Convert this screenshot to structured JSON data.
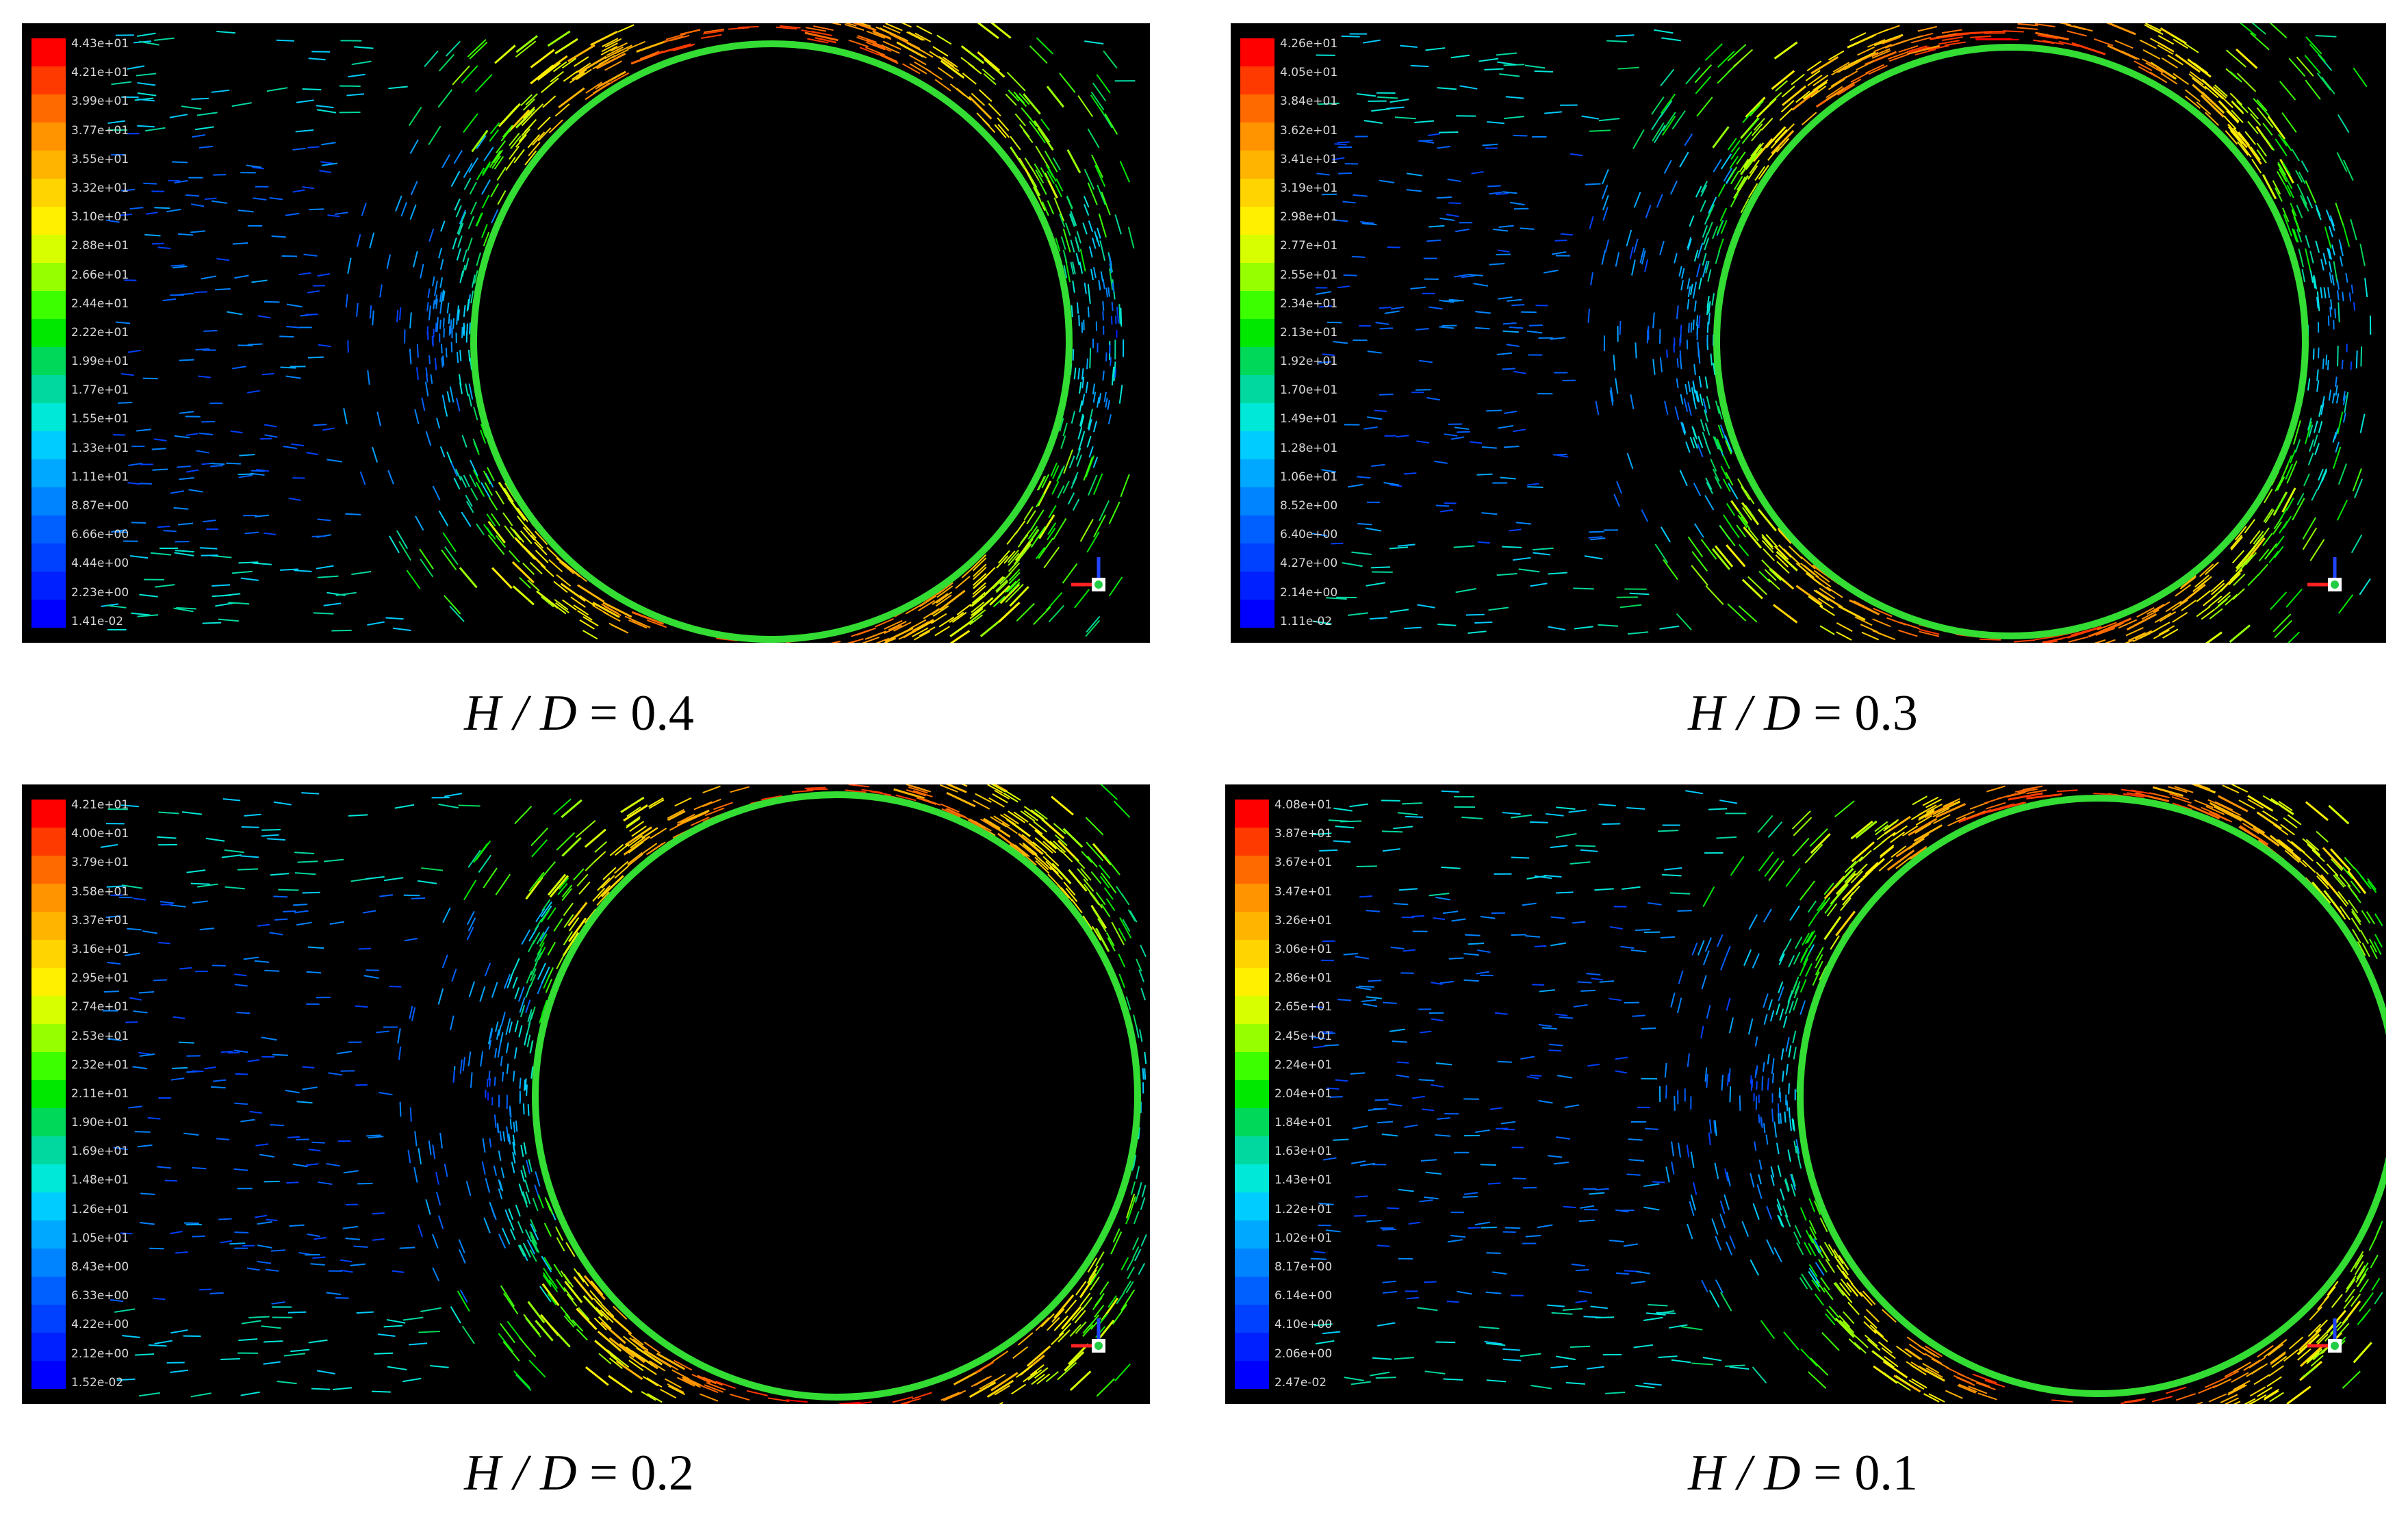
{
  "panels": [
    {
      "caption_var": "H / D",
      "caption_value": "= 0.4",
      "colorbar": [
        "4.43e+01",
        "4.21e+01",
        "3.99e+01",
        "3.77e+01",
        "3.55e+01",
        "3.32e+01",
        "3.10e+01",
        "2.88e+01",
        "2.66e+01",
        "2.44e+01",
        "2.22e+01",
        "1.99e+01",
        "1.77e+01",
        "1.55e+01",
        "1.33e+01",
        "1.11e+01",
        "8.87e+00",
        "6.66e+00",
        "4.44e+00",
        "2.23e+00",
        "1.41e-02"
      ]
    },
    {
      "caption_var": "H / D",
      "caption_value": "= 0.3",
      "colorbar": [
        "4.26e+01",
        "4.05e+01",
        "3.84e+01",
        "3.62e+01",
        "3.41e+01",
        "3.19e+01",
        "2.98e+01",
        "2.77e+01",
        "2.55e+01",
        "2.34e+01",
        "2.13e+01",
        "1.92e+01",
        "1.70e+01",
        "1.49e+01",
        "1.28e+01",
        "1.06e+01",
        "8.52e+00",
        "6.40e+00",
        "4.27e+00",
        "2.14e+00",
        "1.11e-02"
      ]
    },
    {
      "caption_var": "H / D",
      "caption_value": "= 0.2",
      "colorbar": [
        "4.21e+01",
        "4.00e+01",
        "3.79e+01",
        "3.58e+01",
        "3.37e+01",
        "3.16e+01",
        "2.95e+01",
        "2.74e+01",
        "2.53e+01",
        "2.32e+01",
        "2.11e+01",
        "1.90e+01",
        "1.69e+01",
        "1.48e+01",
        "1.26e+01",
        "1.05e+01",
        "8.43e+00",
        "6.33e+00",
        "4.22e+00",
        "2.12e+00",
        "1.52e-02"
      ]
    },
    {
      "caption_var": "H / D",
      "caption_value": "= 0.1",
      "colorbar": [
        "4.08e+01",
        "3.87e+01",
        "3.67e+01",
        "3.47e+01",
        "3.26e+01",
        "3.06e+01",
        "2.86e+01",
        "2.65e+01",
        "2.45e+01",
        "2.24e+01",
        "2.04e+01",
        "1.84e+01",
        "1.63e+01",
        "1.43e+01",
        "1.22e+01",
        "1.02e+01",
        "8.17e+00",
        "6.14e+00",
        "4.10e+00",
        "2.06e+00",
        "2.47e-02"
      ]
    }
  ],
  "colormap": [
    "#ff0000",
    "#ff3a00",
    "#ff6a00",
    "#ff9400",
    "#ffb400",
    "#ffd400",
    "#fff000",
    "#d8ff00",
    "#96ff00",
    "#3cff00",
    "#00e800",
    "#00d85a",
    "#00d8a0",
    "#00e8d8",
    "#00ccff",
    "#00a8ff",
    "#0084ff",
    "#0060ff",
    "#0040ff",
    "#0020ff",
    "#0000ff"
  ]
}
